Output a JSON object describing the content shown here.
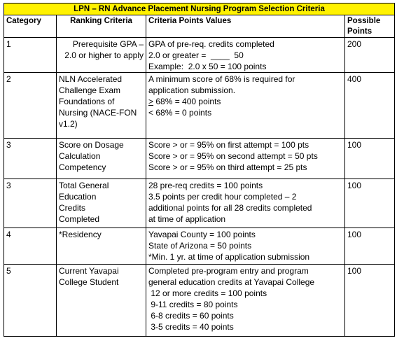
{
  "title": "LPN – RN Advance Placement Nursing Program Selection Criteria",
  "headers": {
    "category": "Category",
    "ranking": "Ranking Criteria",
    "criteria": "Criteria Points Values",
    "possible_line1": "Possible",
    "possible_line2": "Points"
  },
  "rows": [
    {
      "category": "1",
      "ranking": [
        "Prerequisite GPA –",
        "2.0 or higher to apply"
      ],
      "criteria": [
        "GPA of pre-req. credits completed",
        "2.0 or greater =  ____  50",
        "Example:  2.0 x 50 = 100 points"
      ],
      "points": "200"
    },
    {
      "category": "2",
      "ranking": [
        "NLN Accelerated",
        "Challenge Exam",
        "Foundations of",
        "Nursing (NACE-FON",
        "v1.2)"
      ],
      "criteria": [
        "A minimum score of 68% is required for",
        "application submission."
      ],
      "criteria_ge_symbol": ">",
      "criteria_ge_rest": " 68% = 400 points",
      "criteria_last": "< 68% = 0 points",
      "points": "400"
    },
    {
      "category": "3",
      "ranking": [
        "Score on Dosage",
        "Calculation",
        "Competency"
      ],
      "criteria": [
        "Score > or = 95% on first attempt = 100 pts",
        "Score > or = 95% on second attempt = 50 pts",
        "Score > or = 95% on third attempt = 25 pts"
      ],
      "points": "100"
    },
    {
      "category": "3",
      "ranking": [
        "Total General",
        "Education",
        "Credits",
        "Completed"
      ],
      "criteria": [
        "28 pre-req credits = 100 points",
        "3.5 points per credit hour completed – 2",
        "additional points for all 28 credits completed",
        "at time of application"
      ],
      "points": "100"
    },
    {
      "category": "4",
      "ranking": [
        "*Residency"
      ],
      "criteria": [
        "Yavapai County = 100 points",
        "State of Arizona = 50 points",
        "*Min. 1 yr. at time of application submission"
      ],
      "points": "100"
    },
    {
      "category": "5",
      "ranking": [
        "Current Yavapai",
        "College Student"
      ],
      "criteria": [
        "Completed pre-program entry and program",
        "general education credits at Yavapai College",
        " 12 or more credits = 100 points",
        " 9-11 credits = 80 points",
        " 6-8 credits = 60 points",
        " 3-5 credits = 40 points"
      ],
      "points": "100"
    }
  ]
}
